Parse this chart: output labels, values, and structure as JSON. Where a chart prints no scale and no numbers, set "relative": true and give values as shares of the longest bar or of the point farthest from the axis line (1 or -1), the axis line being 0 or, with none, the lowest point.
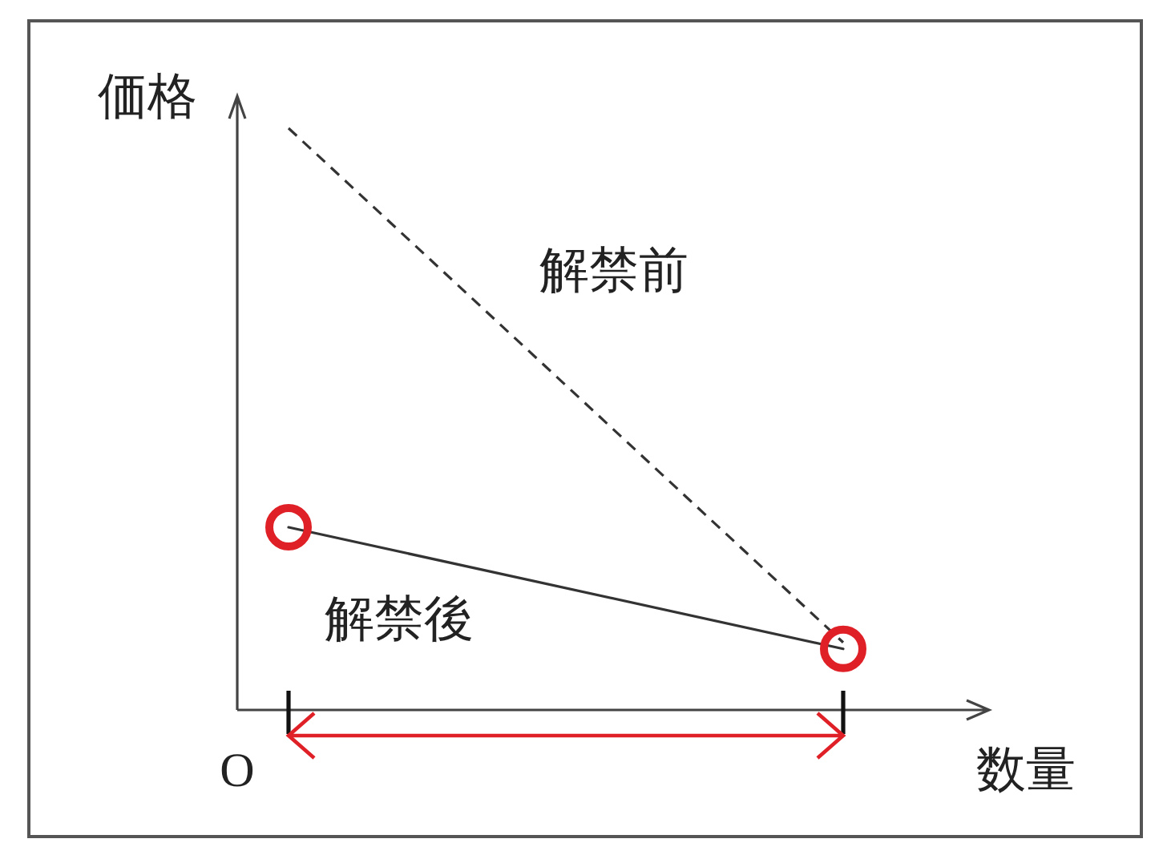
{
  "chart_data": {
    "type": "line",
    "relative": true,
    "xlabel": "数量",
    "ylabel": "価格",
    "categories": [
      null,
      null
    ],
    "series": [
      {
        "name": "解禁前",
        "color": "#333333",
        "line_style": "dashed",
        "values": [
          1,
          0.116
        ]
      },
      {
        "name": "解禁後",
        "color": "#333333",
        "line_style": "solid",
        "marker": "circle",
        "colors": [
          "#e02027",
          "#e02027"
        ],
        "values": [
          0.314,
          0.105
        ]
      }
    ],
    "annotations": [
      "O"
    ]
  }
}
